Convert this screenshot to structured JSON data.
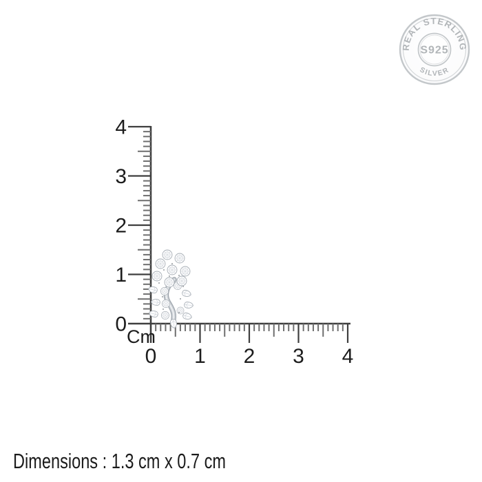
{
  "badge": {
    "arc_top_text": "REAL STERLING",
    "arc_bottom_text": "SILVER",
    "center_text": "S925"
  },
  "ruler": {
    "unit_label": "Cm",
    "vertical_axis": {
      "labels": [
        "4",
        "3",
        "2",
        "1",
        "0"
      ],
      "min_cm": 0,
      "max_cm": 4
    },
    "horizontal_axis": {
      "labels": [
        "0",
        "1",
        "2",
        "3",
        "4"
      ],
      "min_cm": 0,
      "max_cm": 4
    },
    "minor_ticks_per_cm": 10
  },
  "product": {
    "dimensions_label": "Dimensions : 1.3 cm x 0.7 cm"
  },
  "colors": {
    "background": "#ffffff",
    "ruler_line": "#3e3e3e",
    "ruler_tick_minor": "#6e6e6e",
    "label_text": "#1c1c1c",
    "badge_silver": "#b1b5b8"
  }
}
